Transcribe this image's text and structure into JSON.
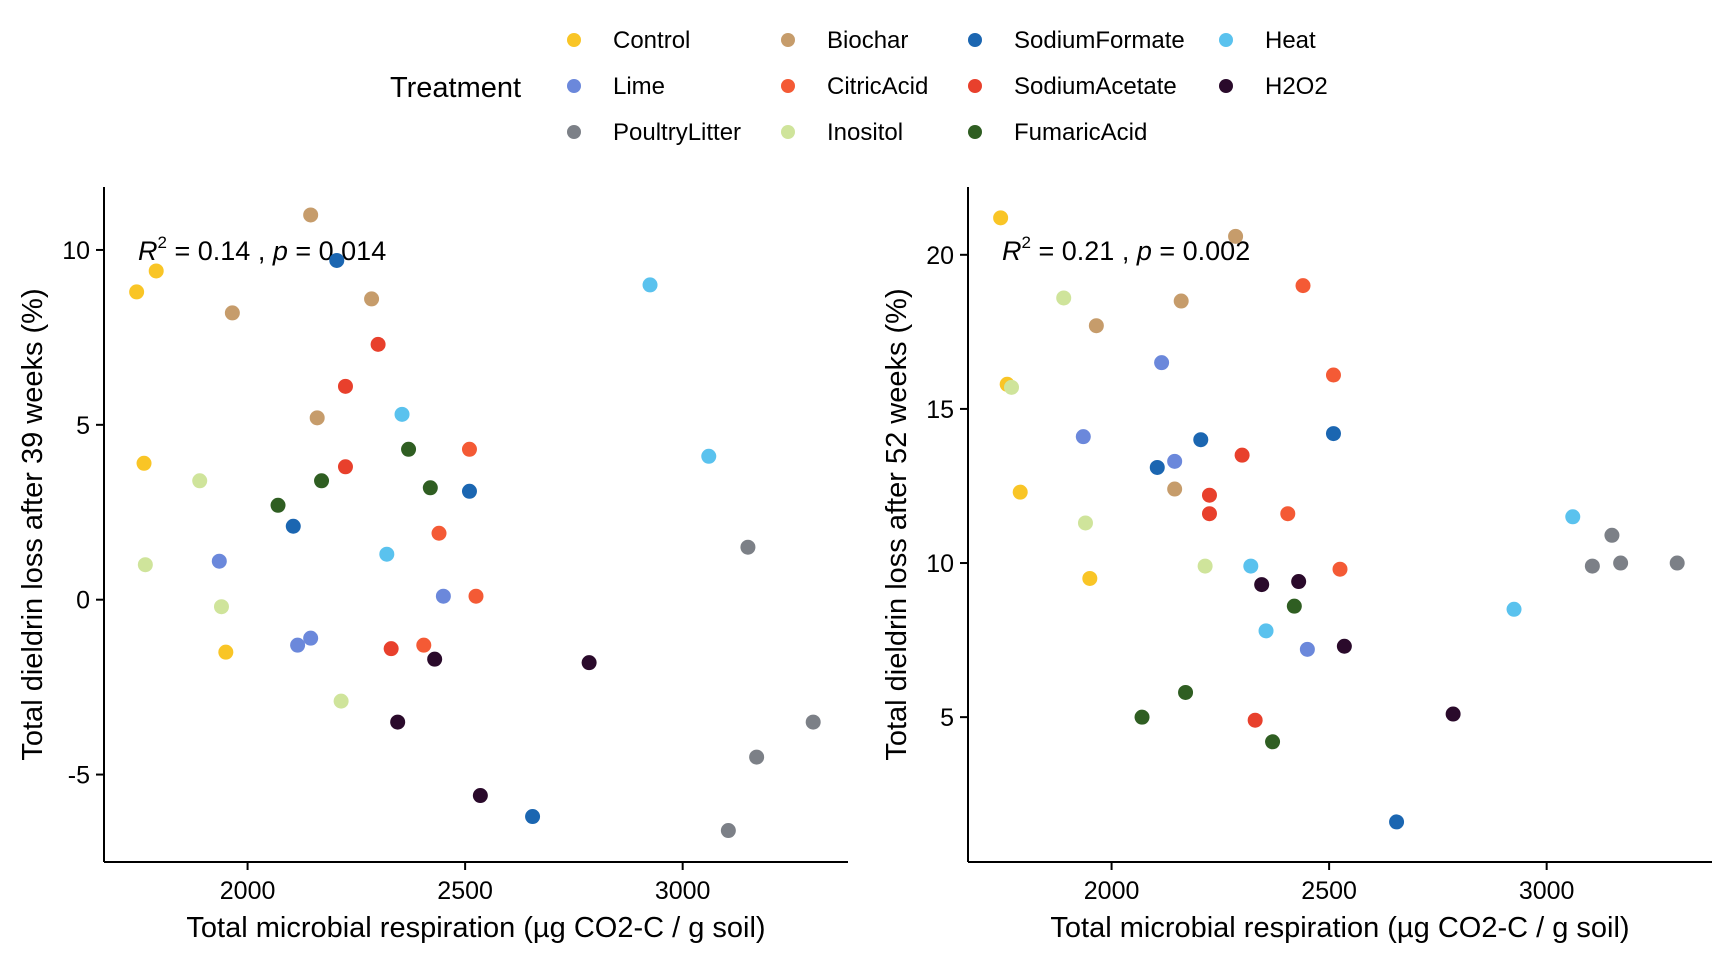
{
  "legend": {
    "title": "Treatment",
    "items": [
      {
        "label": "Control",
        "color": "#F9C526"
      },
      {
        "label": "Lime",
        "color": "#6B88DB"
      },
      {
        "label": "PoultryLitter",
        "color": "#7C8087"
      },
      {
        "label": "Biochar",
        "color": "#C69C6B"
      },
      {
        "label": "CitricAcid",
        "color": "#F45A35"
      },
      {
        "label": "Inositol",
        "color": "#CFE49B"
      },
      {
        "label": "SodiumFormate",
        "color": "#1B66B1"
      },
      {
        "label": "SodiumAcetate",
        "color": "#E8402C"
      },
      {
        "label": "FumaricAcid",
        "color": "#2F5E22"
      },
      {
        "label": "Heat",
        "color": "#5AC2EE"
      },
      {
        "label": "H2O2",
        "color": "#2A0A2B"
      }
    ]
  },
  "chart_data": [
    {
      "type": "scatter",
      "xlabel": "Total microbial respiration (µg CO2-C / g soil)",
      "ylabel": "Total dieldrin loss after 39 weeks (%)",
      "xlim": [
        1670,
        3380
      ],
      "ylim": [
        -7.5,
        11.8
      ],
      "xticks": [
        2000,
        2500,
        3000
      ],
      "yticks": [
        -5,
        0,
        5,
        10
      ],
      "grid": false,
      "annotation": {
        "r2": "0.14",
        "p": "0.014"
      },
      "points": [
        {
          "g": "Control",
          "x": 1745,
          "y": 8.8
        },
        {
          "g": "Control",
          "x": 1790,
          "y": 9.4
        },
        {
          "g": "Control",
          "x": 1762,
          "y": 3.9
        },
        {
          "g": "Control",
          "x": 1950,
          "y": -1.5
        },
        {
          "g": "Biochar",
          "x": 2145,
          "y": 11.0
        },
        {
          "g": "Biochar",
          "x": 1965,
          "y": 8.2
        },
        {
          "g": "Biochar",
          "x": 2285,
          "y": 8.6
        },
        {
          "g": "Biochar",
          "x": 2160,
          "y": 5.2
        },
        {
          "g": "SodiumFormate",
          "x": 2205,
          "y": 9.7
        },
        {
          "g": "SodiumFormate",
          "x": 2105,
          "y": 2.1
        },
        {
          "g": "SodiumFormate",
          "x": 2510,
          "y": 3.1
        },
        {
          "g": "SodiumFormate",
          "x": 2655,
          "y": -6.2
        },
        {
          "g": "Heat",
          "x": 2925,
          "y": 9.0
        },
        {
          "g": "Heat",
          "x": 2355,
          "y": 5.3
        },
        {
          "g": "Heat",
          "x": 3060,
          "y": 4.1
        },
        {
          "g": "Heat",
          "x": 2320,
          "y": 1.3
        },
        {
          "g": "SodiumAcetate",
          "x": 2300,
          "y": 7.3
        },
        {
          "g": "SodiumAcetate",
          "x": 2225,
          "y": 6.1
        },
        {
          "g": "SodiumAcetate",
          "x": 2225,
          "y": 3.8
        },
        {
          "g": "SodiumAcetate",
          "x": 2330,
          "y": -1.4
        },
        {
          "g": "CitricAcid",
          "x": 2510,
          "y": 4.3
        },
        {
          "g": "CitricAcid",
          "x": 2440,
          "y": 1.9
        },
        {
          "g": "CitricAcid",
          "x": 2525,
          "y": 0.1
        },
        {
          "g": "CitricAcid",
          "x": 2405,
          "y": -1.3
        },
        {
          "g": "FumaricAcid",
          "x": 2370,
          "y": 4.3
        },
        {
          "g": "FumaricAcid",
          "x": 2170,
          "y": 3.4
        },
        {
          "g": "FumaricAcid",
          "x": 2420,
          "y": 3.2
        },
        {
          "g": "FumaricAcid",
          "x": 2070,
          "y": 2.7
        },
        {
          "g": "Inositol",
          "x": 1890,
          "y": 3.4
        },
        {
          "g": "Inositol",
          "x": 1765,
          "y": 1.0
        },
        {
          "g": "Inositol",
          "x": 1940,
          "y": -0.2
        },
        {
          "g": "Inositol",
          "x": 2215,
          "y": -2.9
        },
        {
          "g": "Lime",
          "x": 1935,
          "y": 1.1
        },
        {
          "g": "Lime",
          "x": 2450,
          "y": 0.1
        },
        {
          "g": "Lime",
          "x": 2145,
          "y": -1.1
        },
        {
          "g": "Lime",
          "x": 2115,
          "y": -1.3
        },
        {
          "g": "PoultryLitter",
          "x": 3150,
          "y": 1.5
        },
        {
          "g": "PoultryLitter",
          "x": 3300,
          "y": -3.5
        },
        {
          "g": "PoultryLitter",
          "x": 3170,
          "y": -4.5
        },
        {
          "g": "PoultryLitter",
          "x": 3105,
          "y": -6.6
        },
        {
          "g": "H2O2",
          "x": 2430,
          "y": -1.7
        },
        {
          "g": "H2O2",
          "x": 2785,
          "y": -1.8
        },
        {
          "g": "H2O2",
          "x": 2345,
          "y": -3.5
        },
        {
          "g": "H2O2",
          "x": 2535,
          "y": -5.6
        }
      ]
    },
    {
      "type": "scatter",
      "xlabel": "Total microbial respiration (µg CO2-C / g soil)",
      "ylabel": "Total dieldrin loss after 52 weeks (%)",
      "xlim": [
        1670,
        3380
      ],
      "ylim": [
        0.3,
        22.2
      ],
      "xticks": [
        2000,
        2500,
        3000
      ],
      "yticks": [
        5,
        10,
        15,
        20
      ],
      "grid": false,
      "annotation": {
        "r2": "0.21",
        "p": "0.002"
      },
      "points": [
        {
          "g": "Control",
          "x": 1745,
          "y": 21.2
        },
        {
          "g": "Control",
          "x": 1760,
          "y": 15.8
        },
        {
          "g": "Control",
          "x": 1790,
          "y": 12.3
        },
        {
          "g": "Control",
          "x": 1950,
          "y": 9.5
        },
        {
          "g": "Biochar",
          "x": 2285,
          "y": 20.6
        },
        {
          "g": "Biochar",
          "x": 2160,
          "y": 18.5
        },
        {
          "g": "Biochar",
          "x": 1965,
          "y": 17.7
        },
        {
          "g": "Biochar",
          "x": 2145,
          "y": 12.4
        },
        {
          "g": "Inositol",
          "x": 1890,
          "y": 18.6
        },
        {
          "g": "Inositol",
          "x": 1770,
          "y": 15.7
        },
        {
          "g": "Inositol",
          "x": 1940,
          "y": 11.3
        },
        {
          "g": "Inositol",
          "x": 2215,
          "y": 9.9
        },
        {
          "g": "CitricAcid",
          "x": 2440,
          "y": 19.0
        },
        {
          "g": "CitricAcid",
          "x": 2510,
          "y": 16.1
        },
        {
          "g": "CitricAcid",
          "x": 2405,
          "y": 11.6
        },
        {
          "g": "CitricAcid",
          "x": 2525,
          "y": 9.8
        },
        {
          "g": "Lime",
          "x": 2115,
          "y": 16.5
        },
        {
          "g": "Lime",
          "x": 1935,
          "y": 14.1
        },
        {
          "g": "Lime",
          "x": 2145,
          "y": 13.3
        },
        {
          "g": "Lime",
          "x": 2450,
          "y": 7.2
        },
        {
          "g": "SodiumFormate",
          "x": 2510,
          "y": 14.2
        },
        {
          "g": "SodiumFormate",
          "x": 2205,
          "y": 14.0
        },
        {
          "g": "SodiumFormate",
          "x": 2105,
          "y": 13.1
        },
        {
          "g": "SodiumFormate",
          "x": 2655,
          "y": 1.6
        },
        {
          "g": "SodiumAcetate",
          "x": 2300,
          "y": 13.5
        },
        {
          "g": "SodiumAcetate",
          "x": 2225,
          "y": 12.2
        },
        {
          "g": "SodiumAcetate",
          "x": 2225,
          "y": 11.6
        },
        {
          "g": "SodiumAcetate",
          "x": 2330,
          "y": 4.9
        },
        {
          "g": "Heat",
          "x": 3060,
          "y": 11.5
        },
        {
          "g": "Heat",
          "x": 2320,
          "y": 9.9
        },
        {
          "g": "Heat",
          "x": 2925,
          "y": 8.5
        },
        {
          "g": "Heat",
          "x": 2355,
          "y": 7.8
        },
        {
          "g": "PoultryLitter",
          "x": 3150,
          "y": 10.9
        },
        {
          "g": "PoultryLitter",
          "x": 3105,
          "y": 9.9
        },
        {
          "g": "PoultryLitter",
          "x": 3170,
          "y": 10.0
        },
        {
          "g": "PoultryLitter",
          "x": 3300,
          "y": 10.0
        },
        {
          "g": "H2O2",
          "x": 2430,
          "y": 9.4
        },
        {
          "g": "H2O2",
          "x": 2345,
          "y": 9.3
        },
        {
          "g": "H2O2",
          "x": 2535,
          "y": 7.3
        },
        {
          "g": "H2O2",
          "x": 2785,
          "y": 5.1
        },
        {
          "g": "FumaricAcid",
          "x": 2420,
          "y": 8.6
        },
        {
          "g": "FumaricAcid",
          "x": 2170,
          "y": 5.8
        },
        {
          "g": "FumaricAcid",
          "x": 2070,
          "y": 5.0
        },
        {
          "g": "FumaricAcid",
          "x": 2370,
          "y": 4.2
        }
      ]
    }
  ]
}
